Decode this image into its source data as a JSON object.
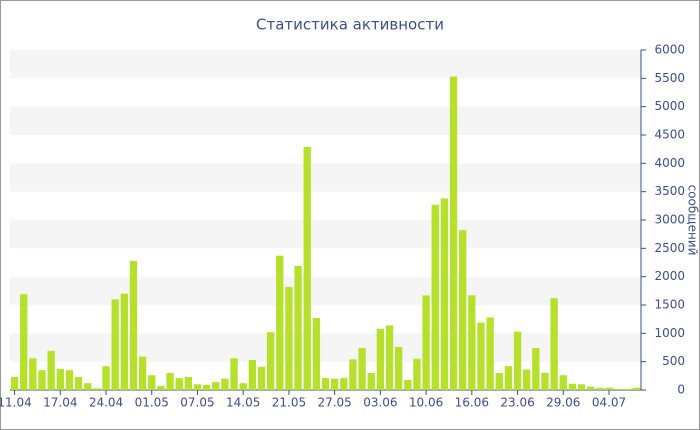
{
  "chart_data": {
    "type": "bar",
    "title": "Статистика активности",
    "y_label": "сообщений",
    "categories": [
      "11.04",
      null,
      null,
      null,
      null,
      "17.04",
      null,
      null,
      null,
      null,
      "24.04",
      null,
      null,
      null,
      null,
      "01.05",
      null,
      null,
      null,
      null,
      "07.05",
      null,
      null,
      null,
      null,
      "14.05",
      null,
      null,
      null,
      null,
      "21.05",
      null,
      null,
      null,
      null,
      "27.05",
      null,
      null,
      null,
      null,
      "03.06",
      null,
      null,
      null,
      null,
      "10.06",
      null,
      null,
      null,
      null,
      "16.06",
      null,
      null,
      null,
      null,
      "23.06",
      null,
      null,
      null,
      null,
      "29.06",
      null,
      null,
      null,
      null,
      "04.07",
      null,
      null,
      null
    ],
    "values": [
      230,
      1690,
      560,
      350,
      690,
      370,
      350,
      230,
      120,
      30,
      420,
      1600,
      1700,
      2280,
      590,
      260,
      70,
      300,
      210,
      230,
      100,
      90,
      140,
      200,
      560,
      120,
      530,
      410,
      1020,
      2370,
      1820,
      2190,
      4290,
      1270,
      210,
      200,
      210,
      540,
      740,
      300,
      1080,
      1140,
      760,
      180,
      550,
      1670,
      3270,
      3380,
      5530,
      2820,
      1670,
      1190,
      1280,
      300,
      420,
      1030,
      360,
      740,
      300,
      1620,
      260,
      110,
      100,
      60,
      40,
      40,
      20,
      20,
      40
    ],
    "color": "#b5e02b",
    "ylim": [
      0,
      6000
    ],
    "yticks": [
      0,
      500,
      1000,
      1500,
      2000,
      2500,
      3000,
      3500,
      4000,
      4500,
      5000,
      5500,
      6000
    ],
    "y_axis_side": "right",
    "grid_bands": true
  }
}
